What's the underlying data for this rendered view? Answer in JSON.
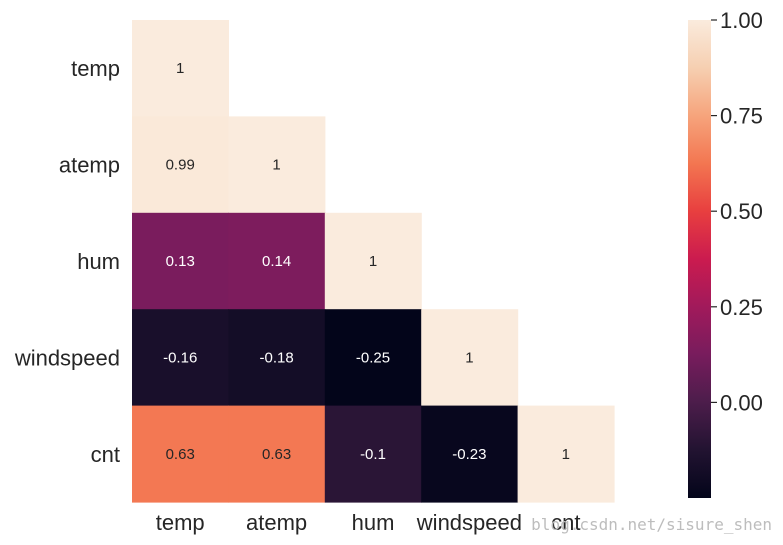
{
  "chart_data": {
    "type": "heatmap",
    "title": "",
    "rows": [
      "temp",
      "atemp",
      "hum",
      "windspeed",
      "cnt"
    ],
    "columns": [
      "temp",
      "atemp",
      "hum",
      "windspeed",
      "cnt"
    ],
    "mask": "upper-triangle",
    "values": [
      [
        1,
        null,
        null,
        null,
        null
      ],
      [
        0.99,
        1,
        null,
        null,
        null
      ],
      [
        0.13,
        0.14,
        1,
        null,
        null
      ],
      [
        -0.16,
        -0.18,
        -0.25,
        1,
        null
      ],
      [
        0.63,
        0.63,
        -0.1,
        -0.23,
        1
      ]
    ],
    "annotations": [
      [
        "1",
        "",
        "",
        "",
        ""
      ],
      [
        "0.99",
        "1",
        "",
        "",
        ""
      ],
      [
        "0.13",
        "0.14",
        "1",
        "",
        ""
      ],
      [
        "-0.16",
        "-0.18",
        "-0.25",
        "1",
        ""
      ],
      [
        "0.63",
        "0.63",
        "-0.1",
        "-0.23",
        "1"
      ]
    ],
    "colorbar": {
      "vmin": -0.25,
      "vmax": 1.0,
      "ticks": [
        0.0,
        0.25,
        0.5,
        0.75,
        1.0
      ],
      "tick_labels": [
        "0.00",
        "0.25",
        "0.50",
        "0.75",
        "1.00"
      ],
      "colormap": "rocket",
      "color_stops": [
        "#03051a",
        "#221331",
        "#4c1d4b",
        "#781c5d",
        "#a11a5b",
        "#cb1b4f",
        "#e83f3f",
        "#f37651",
        "#f6a47c",
        "#f6cfb1",
        "#faebdd"
      ]
    },
    "grid": false
  },
  "watermark": "blog.csdn.net/sisure_shen"
}
